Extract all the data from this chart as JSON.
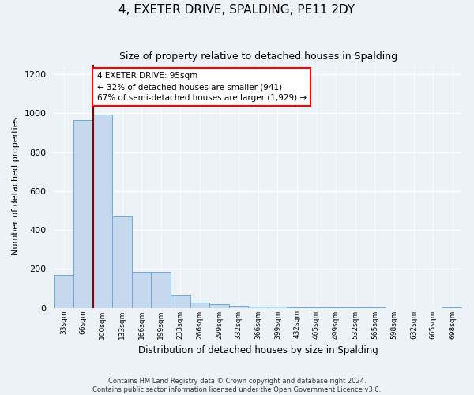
{
  "title": "4, EXETER DRIVE, SPALDING, PE11 2DY",
  "subtitle": "Size of property relative to detached houses in Spalding",
  "xlabel": "Distribution of detached houses by size in Spalding",
  "ylabel": "Number of detached properties",
  "bar_color": "#c5d8ee",
  "bar_edge_color": "#6aaad4",
  "categories": [
    "33sqm",
    "66sqm",
    "100sqm",
    "133sqm",
    "166sqm",
    "199sqm",
    "233sqm",
    "266sqm",
    "299sqm",
    "332sqm",
    "366sqm",
    "399sqm",
    "432sqm",
    "465sqm",
    "499sqm",
    "532sqm",
    "565sqm",
    "598sqm",
    "632sqm",
    "665sqm",
    "698sqm"
  ],
  "values": [
    170,
    965,
    995,
    470,
    185,
    185,
    65,
    25,
    20,
    12,
    5,
    5,
    3,
    2,
    2,
    2,
    2,
    0,
    0,
    0,
    2
  ],
  "ylim": [
    0,
    1250
  ],
  "yticks": [
    0,
    200,
    400,
    600,
    800,
    1000,
    1200
  ],
  "vline_x_index": 1.5,
  "annotation_text": "4 EXETER DRIVE: 95sqm\n← 32% of detached houses are smaller (941)\n67% of semi-detached houses are larger (1,929) →",
  "annotation_box_color": "white",
  "annotation_box_edge_color": "red",
  "vline_color": "#8b0000",
  "footer": "Contains HM Land Registry data © Crown copyright and database right 2024.\nContains public sector information licensed under the Open Government Licence v3.0.",
  "background_color": "#edf2f7",
  "plot_bg_color": "#edf2f7",
  "grid_color": "#ffffff",
  "title_fontsize": 11,
  "subtitle_fontsize": 9
}
